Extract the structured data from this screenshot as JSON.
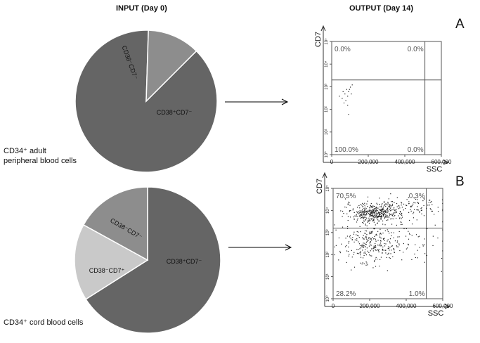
{
  "headers": {
    "input": "INPUT (Day 0)",
    "output": "OUTPUT (Day 14)"
  },
  "panels": {
    "a": "A",
    "b": "B"
  },
  "captions": {
    "adult_line1": "CD34⁺ adult",
    "adult_line2": "peripheral blood cells",
    "cord": "CD34⁺ cord blood cells"
  },
  "colors": {
    "dark": "#656565",
    "mid": "#8d8d8d",
    "light": "#c9c9c9"
  },
  "chart_data": [
    {
      "type": "pie",
      "title": "",
      "slices": [
        {
          "label": "CD38⁺CD7⁻",
          "value": 88
        },
        {
          "label": "CD38⁻CD7⁻",
          "value": 12
        }
      ]
    },
    {
      "type": "pie",
      "title": "",
      "slices": [
        {
          "label": "CD38⁺CD7⁻",
          "value": 66
        },
        {
          "label": "CD38⁻CD7⁺",
          "value": 17
        },
        {
          "label": "CD38⁻CD7⁻",
          "value": 17
        }
      ]
    },
    {
      "type": "scatter",
      "xlabel": "SSC",
      "ylabel": "CD7",
      "x_ticks": [
        "0",
        "200,000",
        "400,000",
        "600,000"
      ],
      "y_ticks": [
        "10⁰",
        "10¹",
        "10²",
        "10³",
        "10⁴",
        "10⁵"
      ],
      "xlim": [
        0,
        600000
      ],
      "ylim_log10": [
        0,
        5
      ],
      "gate": {
        "x": 510000,
        "y_log10": 3.3
      },
      "quadrants": {
        "upper_left": "0.0%",
        "upper_right": "0.0%",
        "lower_left": "100.0%",
        "lower_right": "0.0%"
      },
      "points": [
        [
          40000,
          2.6
        ],
        [
          60000,
          2.8
        ],
        [
          70000,
          2.7
        ],
        [
          80000,
          2.9
        ],
        [
          90000,
          2.8
        ],
        [
          100000,
          3.0
        ],
        [
          55000,
          2.5
        ],
        [
          75000,
          2.4
        ],
        [
          85000,
          2.6
        ],
        [
          95000,
          2.9
        ],
        [
          65000,
          2.3
        ],
        [
          105000,
          2.7
        ],
        [
          90000,
          1.8
        ],
        [
          85000,
          2.2
        ],
        [
          110000,
          3.1
        ]
      ]
    },
    {
      "type": "scatter",
      "xlabel": "SSC",
      "ylabel": "CD7",
      "x_ticks": [
        "0",
        "200,000",
        "400,000",
        "600,000"
      ],
      "y_ticks": [
        "10⁰",
        "10¹",
        "10²",
        "10³",
        "10⁴",
        "10⁵"
      ],
      "xlim": [
        0,
        600000
      ],
      "ylim_log10": [
        0,
        5
      ],
      "gate": {
        "x": 510000,
        "y_log10": 3.2
      },
      "quadrants": {
        "upper_left": "70.5%",
        "upper_right": "0.3%",
        "lower_left": "28.2%",
        "lower_right": "1.0%"
      },
      "clusters": [
        {
          "cx": 230000,
          "cy": 3.9,
          "sx": 80000,
          "sy": 0.22,
          "n": 420
        },
        {
          "cx": 430000,
          "cy": 4.2,
          "sx": 90000,
          "sy": 0.25,
          "n": 90
        },
        {
          "cx": 200000,
          "cy": 2.5,
          "sx": 80000,
          "sy": 0.45,
          "n": 260
        },
        {
          "cx": 420000,
          "cy": 2.6,
          "sx": 110000,
          "sy": 0.5,
          "n": 60
        }
      ]
    }
  ]
}
